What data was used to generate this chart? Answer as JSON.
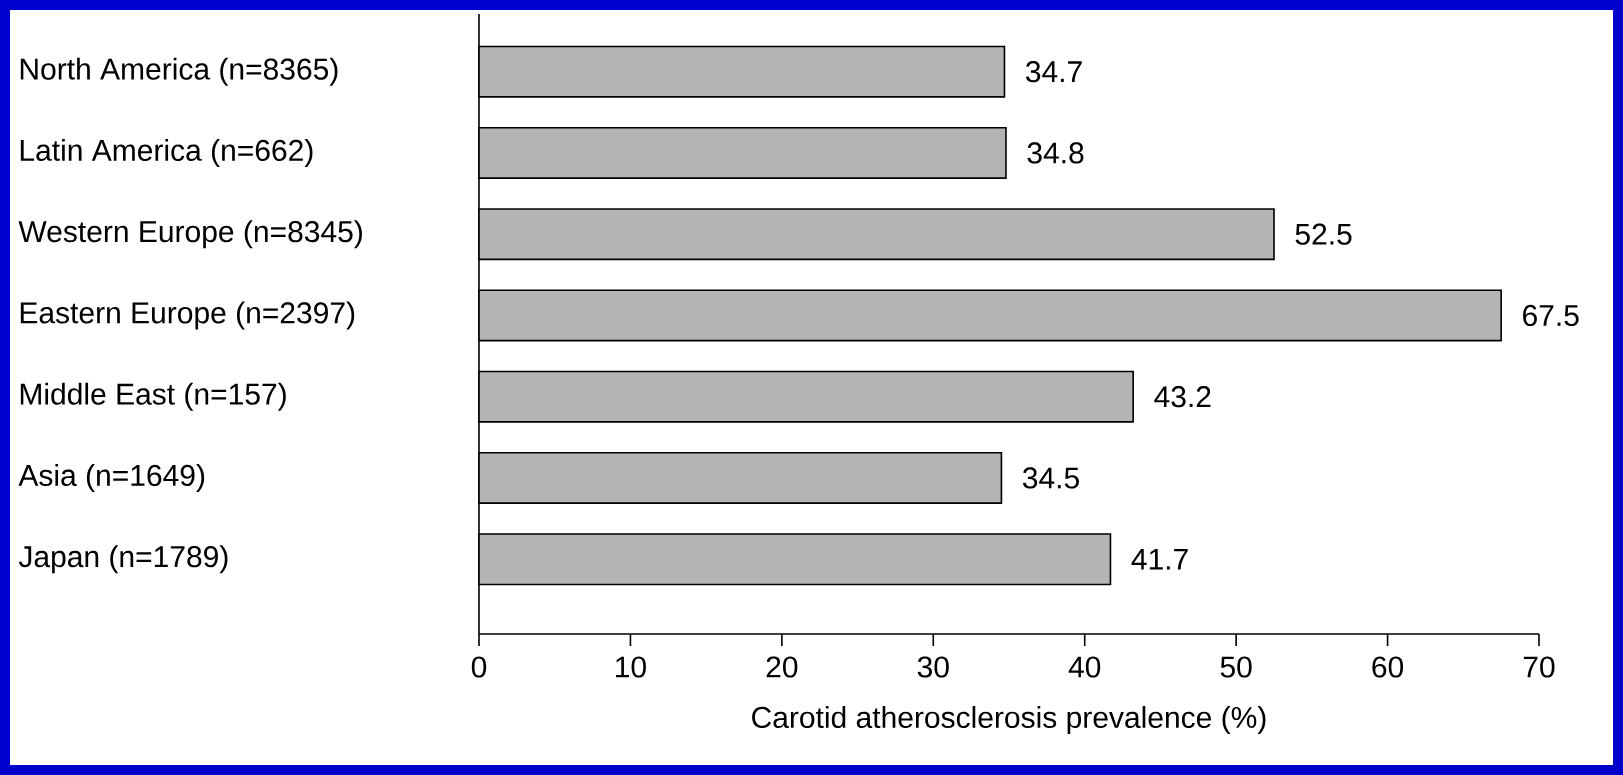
{
  "chart_data": {
    "type": "bar",
    "orientation": "horizontal",
    "xlabel": "Carotid atherosclerosis prevalence (%)",
    "categories": [
      "North America (n=8365)",
      "Latin America (n=662)",
      "Western Europe (n=8345)",
      "Eastern Europe (n=2397)",
      "Middle East (n=157)",
      "Asia (n=1649)",
      "Japan (n=1789)"
    ],
    "values": [
      34.7,
      34.8,
      52.5,
      67.5,
      43.2,
      34.5,
      41.7
    ],
    "color": "#b4b4b4",
    "xlim": [
      0,
      70
    ],
    "xticks": [
      0,
      10,
      20,
      30,
      40,
      50,
      60,
      70
    ],
    "data_labels": true
  }
}
